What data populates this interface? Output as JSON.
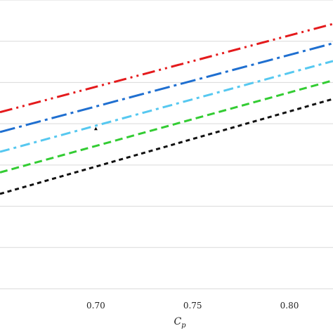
{
  "chart_data": {
    "type": "line",
    "xlabel": "C",
    "xlabel_subscript": "p",
    "xlim": [
      0.6505,
      0.8225
    ],
    "ylim": [
      0,
      7
    ],
    "x_ticks": [
      0.7,
      0.75,
      0.8
    ],
    "x_tick_labels": [
      "0.70",
      "0.75",
      "0.80"
    ],
    "y_grid": [
      1,
      2,
      3,
      4,
      5,
      6,
      7
    ],
    "grid": "horizontal",
    "series": [
      {
        "color": "#e41a1c",
        "dash": "dash-dot-dot",
        "x": [
          0.6505,
          0.8225
        ],
        "y": [
          4.28,
          6.42
        ]
      },
      {
        "color": "#1f6fd0",
        "dash": "long-dash-dot",
        "x": [
          0.6505,
          0.8225
        ],
        "y": [
          3.8,
          5.95
        ]
      },
      {
        "color": "#56c8f0",
        "dash": "dash-dot",
        "x": [
          0.6505,
          0.8225
        ],
        "y": [
          3.32,
          5.52
        ]
      },
      {
        "color": "#33cc33",
        "dash": "dashed",
        "x": [
          0.6505,
          0.8225
        ],
        "y": [
          2.82,
          5.05
        ]
      },
      {
        "color": "#111111",
        "dash": "dotted",
        "x": [
          0.6505,
          0.8225
        ],
        "y": [
          2.3,
          4.6
        ]
      }
    ],
    "markers": [
      {
        "x": 0.7,
        "y": 3.88,
        "symbol": "triangle",
        "color": "#000000"
      }
    ]
  }
}
